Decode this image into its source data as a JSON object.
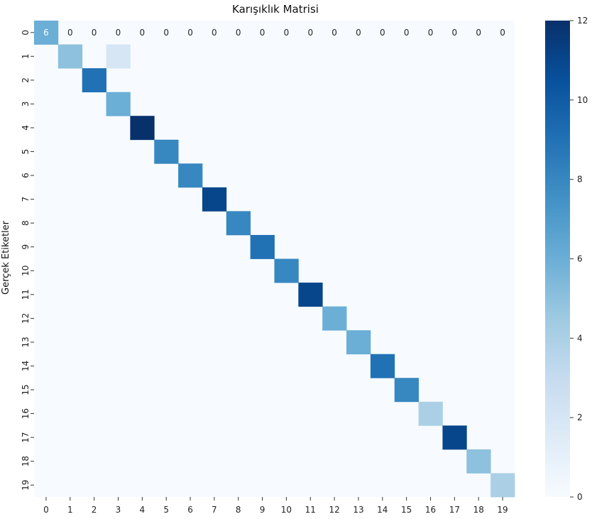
{
  "chart_data": {
    "type": "heatmap",
    "title": "Karışıklık Matrisi",
    "ylabel": "Gerçek Etiketler",
    "xlabel": "",
    "x_ticks": [
      "0",
      "1",
      "2",
      "3",
      "4",
      "5",
      "6",
      "7",
      "8",
      "9",
      "10",
      "11",
      "12",
      "13",
      "14",
      "15",
      "16",
      "17",
      "18",
      "19"
    ],
    "y_ticks": [
      "0",
      "1",
      "2",
      "3",
      "4",
      "5",
      "6",
      "7",
      "8",
      "9",
      "10",
      "11",
      "12",
      "13",
      "14",
      "15",
      "16",
      "17",
      "18",
      "19"
    ],
    "colorbar": {
      "min": 0,
      "max": 12,
      "ticks": [
        "0",
        "2",
        "4",
        "6",
        "8",
        "10",
        "12"
      ]
    },
    "colormap": "Blues",
    "visible_annotations": {
      "row": 0,
      "values": [
        6,
        0,
        0,
        0,
        0,
        0,
        0,
        0,
        0,
        0,
        0,
        0,
        0,
        0,
        0,
        0,
        0,
        0,
        0,
        0
      ]
    },
    "cells": [
      {
        "row": 0,
        "col": 0,
        "value": 6
      },
      {
        "row": 1,
        "col": 1,
        "value": 5
      },
      {
        "row": 1,
        "col": 3,
        "value": 2
      },
      {
        "row": 2,
        "col": 2,
        "value": 9
      },
      {
        "row": 3,
        "col": 3,
        "value": 6
      },
      {
        "row": 4,
        "col": 4,
        "value": 12
      },
      {
        "row": 5,
        "col": 5,
        "value": 8
      },
      {
        "row": 6,
        "col": 6,
        "value": 8
      },
      {
        "row": 7,
        "col": 7,
        "value": 11
      },
      {
        "row": 8,
        "col": 8,
        "value": 8
      },
      {
        "row": 9,
        "col": 9,
        "value": 9
      },
      {
        "row": 10,
        "col": 10,
        "value": 8
      },
      {
        "row": 11,
        "col": 11,
        "value": 11
      },
      {
        "row": 12,
        "col": 12,
        "value": 6
      },
      {
        "row": 13,
        "col": 13,
        "value": 6
      },
      {
        "row": 14,
        "col": 14,
        "value": 9
      },
      {
        "row": 15,
        "col": 15,
        "value": 8
      },
      {
        "row": 16,
        "col": 16,
        "value": 4
      },
      {
        "row": 17,
        "col": 17,
        "value": 11
      },
      {
        "row": 18,
        "col": 18,
        "value": 5
      },
      {
        "row": 19,
        "col": 19,
        "value": 4
      }
    ]
  }
}
